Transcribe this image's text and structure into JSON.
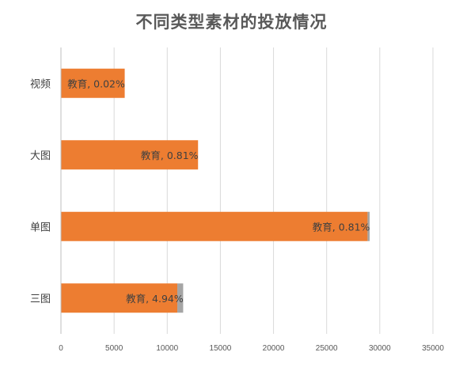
{
  "title": "不同类型素材的投放情况",
  "chart_data": {
    "type": "bar",
    "orientation": "horizontal",
    "stacked": true,
    "title": "不同类型素材的投放情况",
    "categories": [
      "视频",
      "大图",
      "单图",
      "三图"
    ],
    "series": [
      {
        "values": [
          6000,
          12900,
          28850,
          10950
        ],
        "color": "#ED7D31"
      },
      {
        "values": [
          0,
          0,
          200,
          550
        ],
        "color": "#A5A5A5"
      }
    ],
    "data_labels": [
      "教育, 0.02%",
      "教育, 0.81%",
      "教育, 0.81%",
      "教育, 4.94%"
    ],
    "x_ticks": [
      0,
      5000,
      10000,
      15000,
      20000,
      25000,
      30000,
      35000
    ],
    "xlim": [
      0,
      35000
    ],
    "grid": "vertical",
    "legend": "none"
  }
}
